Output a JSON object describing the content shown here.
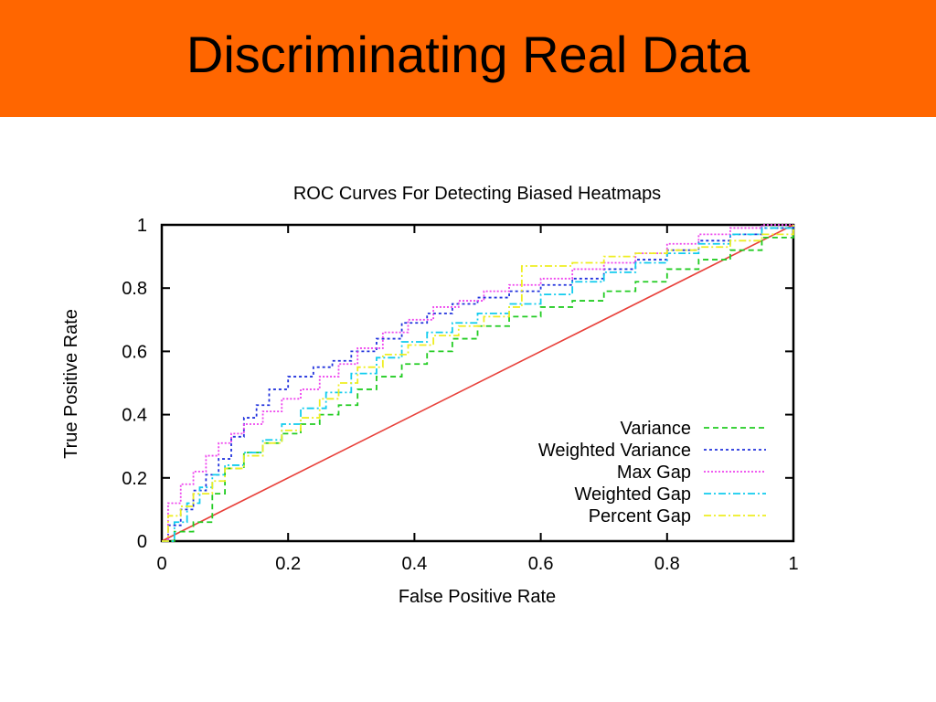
{
  "slide": {
    "title": "Discriminating Real Data"
  },
  "chart_data": {
    "type": "line",
    "title": "ROC Curves For Detecting Biased Heatmaps",
    "xlabel": "False Positive Rate",
    "ylabel": "True Positive Rate",
    "xlim": [
      0,
      1
    ],
    "ylim": [
      0,
      1
    ],
    "x_ticks": [
      "0",
      "0.2",
      "0.4",
      "0.6",
      "0.8",
      "1"
    ],
    "y_ticks": [
      "0",
      "0.2",
      "0.4",
      "0.6",
      "0.8",
      "1"
    ],
    "grid": false,
    "legend_position": "bottom-right",
    "diagonal": {
      "x": [
        0,
        1
      ],
      "y": [
        0,
        1
      ],
      "color": "#e8403a"
    },
    "series": [
      {
        "name": "Variance",
        "color": "#22cc22",
        "dash": "6,4",
        "x": [
          0,
          0.02,
          0.05,
          0.08,
          0.08,
          0.1,
          0.13,
          0.16,
          0.19,
          0.22,
          0.25,
          0.28,
          0.31,
          0.34,
          0.38,
          0.42,
          0.46,
          0.5,
          0.55,
          0.6,
          0.65,
          0.7,
          0.75,
          0.8,
          0.85,
          0.9,
          0.95,
          1
        ],
        "y": [
          0,
          0.03,
          0.06,
          0.08,
          0.15,
          0.23,
          0.28,
          0.31,
          0.34,
          0.37,
          0.4,
          0.43,
          0.48,
          0.52,
          0.56,
          0.6,
          0.64,
          0.68,
          0.71,
          0.74,
          0.76,
          0.79,
          0.82,
          0.86,
          0.89,
          0.92,
          0.96,
          1
        ]
      },
      {
        "name": "Weighted Variance",
        "color": "#2233dd",
        "dash": "3,3",
        "x": [
          0,
          0.01,
          0.03,
          0.05,
          0.07,
          0.09,
          0.11,
          0.13,
          0.15,
          0.17,
          0.2,
          0.24,
          0.27,
          0.3,
          0.34,
          0.38,
          0.42,
          0.46,
          0.5,
          0.55,
          0.6,
          0.65,
          0.7,
          0.75,
          0.8,
          0.85,
          0.9,
          0.95,
          1
        ],
        "y": [
          0,
          0.05,
          0.1,
          0.16,
          0.21,
          0.26,
          0.33,
          0.39,
          0.43,
          0.48,
          0.52,
          0.55,
          0.57,
          0.6,
          0.64,
          0.69,
          0.72,
          0.75,
          0.77,
          0.79,
          0.81,
          0.83,
          0.86,
          0.89,
          0.92,
          0.95,
          0.97,
          0.99,
          1
        ]
      },
      {
        "name": "Max Gap",
        "color": "#ee44ee",
        "dash": "2,2",
        "x": [
          0,
          0.01,
          0.03,
          0.05,
          0.07,
          0.09,
          0.11,
          0.13,
          0.16,
          0.19,
          0.22,
          0.25,
          0.28,
          0.31,
          0.35,
          0.39,
          0.43,
          0.47,
          0.51,
          0.55,
          0.6,
          0.65,
          0.7,
          0.75,
          0.8,
          0.85,
          0.9,
          0.95,
          1
        ],
        "y": [
          0,
          0.12,
          0.18,
          0.22,
          0.27,
          0.31,
          0.34,
          0.37,
          0.41,
          0.45,
          0.48,
          0.52,
          0.56,
          0.61,
          0.66,
          0.7,
          0.74,
          0.76,
          0.79,
          0.81,
          0.83,
          0.86,
          0.88,
          0.91,
          0.94,
          0.97,
          0.99,
          1,
          1
        ]
      },
      {
        "name": "Weighted Gap",
        "color": "#11ccee",
        "dash": "8,3,2,3",
        "x": [
          0,
          0.02,
          0.04,
          0.06,
          0.08,
          0.1,
          0.13,
          0.16,
          0.19,
          0.22,
          0.26,
          0.3,
          0.34,
          0.38,
          0.42,
          0.46,
          0.5,
          0.55,
          0.6,
          0.65,
          0.7,
          0.75,
          0.8,
          0.85,
          0.9,
          0.95,
          1
        ],
        "y": [
          0,
          0.06,
          0.12,
          0.17,
          0.21,
          0.24,
          0.28,
          0.32,
          0.37,
          0.42,
          0.47,
          0.53,
          0.58,
          0.63,
          0.66,
          0.69,
          0.72,
          0.75,
          0.78,
          0.82,
          0.85,
          0.88,
          0.91,
          0.94,
          0.97,
          0.99,
          1
        ]
      },
      {
        "name": "Percent Gap",
        "color": "#eeee22",
        "dash": "8,3,2,3",
        "x": [
          0,
          0.01,
          0.03,
          0.05,
          0.08,
          0.1,
          0.13,
          0.16,
          0.19,
          0.22,
          0.25,
          0.28,
          0.31,
          0.35,
          0.39,
          0.43,
          0.47,
          0.51,
          0.55,
          0.57,
          0.6,
          0.65,
          0.7,
          0.75,
          0.8,
          0.85,
          0.9,
          0.95,
          1
        ],
        "y": [
          0,
          0.08,
          0.11,
          0.15,
          0.19,
          0.23,
          0.27,
          0.31,
          0.35,
          0.39,
          0.45,
          0.5,
          0.55,
          0.59,
          0.62,
          0.65,
          0.68,
          0.71,
          0.74,
          0.87,
          0.87,
          0.88,
          0.9,
          0.91,
          0.92,
          0.93,
          0.95,
          0.97,
          1
        ]
      }
    ]
  }
}
